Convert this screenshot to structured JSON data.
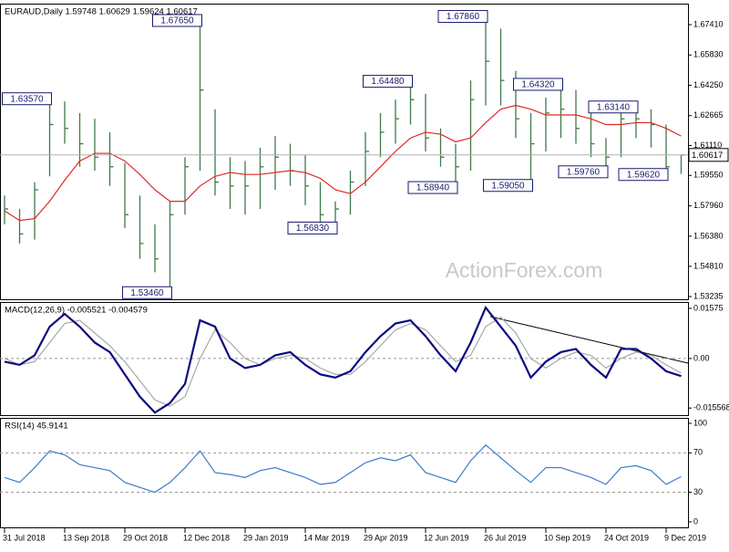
{
  "chart_data": [
    {
      "type": "hlc",
      "title": "EURAUD,Daily  1.59748 1.60629 1.59624 1.60617",
      "watermark": "ActionForex.com",
      "color": "#3f7a4c",
      "categories": [
        "31 Jul 2018",
        null,
        null,
        null,
        "13 Sep 2018",
        null,
        null,
        null,
        "29 Oct 2018",
        null,
        null,
        null,
        "12 Dec 2018",
        null,
        null,
        null,
        "29 Jan 2019",
        null,
        null,
        null,
        "14 Mar 2019",
        null,
        null,
        null,
        "29 Apr 2019",
        null,
        null,
        null,
        "12 Jun 2019",
        null,
        null,
        null,
        "26 Jul 2019",
        null,
        null,
        null,
        "10 Sep 2019",
        null,
        null,
        null,
        "24 Oct 2019",
        null,
        null,
        null,
        "9 Dec 2019",
        null
      ],
      "high": [
        1.585,
        1.578,
        1.592,
        1.6357,
        1.634,
        1.628,
        1.625,
        1.618,
        1.602,
        1.585,
        1.57,
        1.582,
        1.605,
        1.6765,
        1.63,
        1.605,
        1.603,
        1.61,
        1.616,
        1.612,
        1.606,
        1.592,
        1.582,
        1.598,
        1.618,
        1.628,
        1.635,
        1.6448,
        1.638,
        1.62,
        1.612,
        1.645,
        1.6786,
        1.672,
        1.65,
        1.628,
        1.636,
        1.6432,
        1.64,
        1.628,
        1.615,
        1.63,
        1.6314,
        1.63,
        1.622,
        1.60629
      ],
      "low": [
        1.57,
        1.56,
        1.562,
        1.595,
        1.612,
        1.6,
        1.598,
        1.59,
        1.568,
        1.552,
        1.545,
        1.5346,
        1.575,
        1.598,
        1.585,
        1.578,
        1.575,
        1.578,
        1.588,
        1.59,
        1.58,
        1.57,
        1.5683,
        1.575,
        1.59,
        1.605,
        1.612,
        1.622,
        1.608,
        1.6,
        1.5894,
        1.598,
        1.632,
        1.632,
        1.615,
        1.5905,
        1.608,
        1.615,
        1.612,
        1.605,
        1.5976,
        1.605,
        1.615,
        1.61,
        1.5962,
        1.59624
      ],
      "close": [
        1.578,
        1.565,
        1.588,
        1.622,
        1.62,
        1.612,
        1.605,
        1.6,
        1.575,
        1.56,
        1.552,
        1.575,
        1.6,
        1.64,
        1.592,
        1.59,
        1.59,
        1.6,
        1.605,
        1.598,
        1.59,
        1.575,
        1.578,
        1.592,
        1.608,
        1.618,
        1.625,
        1.635,
        1.615,
        1.605,
        1.6,
        1.635,
        1.655,
        1.645,
        1.625,
        1.612,
        1.628,
        1.63,
        1.62,
        1.612,
        1.605,
        1.625,
        1.625,
        1.622,
        1.6,
        1.60617
      ],
      "series": [
        {
          "color": "#e02828",
          "values": [
            1.577,
            1.572,
            1.573,
            1.582,
            1.593,
            1.603,
            1.607,
            1.607,
            1.603,
            1.596,
            1.588,
            1.582,
            1.582,
            1.59,
            1.595,
            1.597,
            1.596,
            1.596,
            1.597,
            1.598,
            1.597,
            1.594,
            1.588,
            1.586,
            1.592,
            1.6,
            1.608,
            1.615,
            1.618,
            1.617,
            1.613,
            1.615,
            1.623,
            1.63,
            1.632,
            1.63,
            1.627,
            1.627,
            1.627,
            1.625,
            1.622,
            1.622,
            1.623,
            1.623,
            1.62,
            1.616
          ]
        }
      ],
      "annotations": [
        {
          "value": 1.6357,
          "label": "1.63570"
        },
        {
          "value": 1.6765,
          "label": "1.67650"
        },
        {
          "value": 1.5346,
          "label": "1.53460"
        },
        {
          "value": 1.6448,
          "label": "1.64480"
        },
        {
          "value": 1.5683,
          "label": "1.56830"
        },
        {
          "value": 1.6786,
          "label": "1.67860"
        },
        {
          "value": 1.5894,
          "label": "1.58940"
        },
        {
          "value": 1.5905,
          "label": "1.59050"
        },
        {
          "value": 1.6432,
          "label": "1.64320"
        },
        {
          "value": 1.5976,
          "label": "1.59760"
        },
        {
          "value": 1.6314,
          "label": "1.63140"
        },
        {
          "value": 1.5962,
          "label": "1.59620"
        }
      ],
      "ylim": [
        1.53092,
        1.68504
      ],
      "yticks": [
        {
          "value": 1.6741,
          "label": "1.67410"
        },
        {
          "value": 1.6583,
          "label": "1.65830"
        },
        {
          "value": 1.6425,
          "label": "1.64250"
        },
        {
          "value": 1.62665,
          "label": "1.62665"
        },
        {
          "value": 1.6111,
          "label": "1.61110"
        },
        {
          "value": 1.5955,
          "label": "1.59550"
        },
        {
          "value": 1.5796,
          "label": "1.57960"
        },
        {
          "value": 1.5638,
          "label": "1.56380"
        },
        {
          "value": 1.5481,
          "label": "1.54810"
        },
        {
          "value": 1.53235,
          "label": "1.53235"
        }
      ]
    },
    {
      "type": "line",
      "title": "MACD(12,26,9) -0.005521 -0.004579",
      "series": [
        {
          "color": "#a8a8a8",
          "values": [
            0.0,
            -0.002,
            -0.001,
            0.005,
            0.011,
            0.012,
            0.008,
            0.004,
            -0.001,
            -0.007,
            -0.013,
            -0.015,
            -0.012,
            0.0,
            0.009,
            0.005,
            0.0,
            -0.002,
            0.0,
            0.001,
            0.0,
            -0.003,
            -0.005,
            -0.005,
            -0.001,
            0.004,
            0.009,
            0.011,
            0.009,
            0.004,
            -0.001,
            0.001,
            0.01,
            0.013,
            0.008,
            0.0,
            -0.003,
            0.0,
            0.002,
            0.001,
            -0.003,
            0.0,
            0.002,
            0.001,
            -0.002,
            -0.004579
          ]
        },
        {
          "color": "#0a0a80",
          "values": [
            -0.001,
            -0.002,
            0.001,
            0.01,
            0.014,
            0.01,
            0.005,
            0.002,
            -0.005,
            -0.012,
            -0.017,
            -0.014,
            -0.008,
            0.012,
            0.01,
            0.0,
            -0.003,
            -0.002,
            0.001,
            0.002,
            -0.002,
            -0.005,
            -0.006,
            -0.004,
            0.002,
            0.007,
            0.011,
            0.012,
            0.007,
            0.001,
            -0.004,
            0.005,
            0.016,
            0.01,
            0.004,
            -0.006,
            -0.001,
            0.002,
            0.003,
            -0.002,
            -0.006,
            0.003,
            0.003,
            0.0,
            -0.004,
            -0.005521
          ]
        }
      ],
      "ylim": [
        -0.0178,
        0.01775
      ],
      "yticks": [
        0.01575,
        {
          "value": 0,
          "label": "0.00"
        },
        -0.015568
      ],
      "levels": [
        0
      ]
    },
    {
      "type": "line",
      "title": "RSI(14) 45.9141",
      "series": [
        {
          "color": "#3d7cc9",
          "values": [
            45,
            40,
            55,
            72,
            68,
            58,
            55,
            52,
            40,
            35,
            30,
            40,
            55,
            72,
            50,
            48,
            45,
            52,
            55,
            50,
            45,
            38,
            40,
            50,
            60,
            65,
            62,
            68,
            50,
            45,
            40,
            62,
            78,
            65,
            52,
            40,
            55,
            55,
            50,
            45,
            38,
            55,
            57,
            52,
            38,
            45.9141
          ]
        }
      ],
      "ylim": [
        -5.6,
        105.5
      ],
      "yticks": [
        100,
        70,
        30,
        0
      ],
      "levels": [
        70,
        30
      ]
    }
  ]
}
